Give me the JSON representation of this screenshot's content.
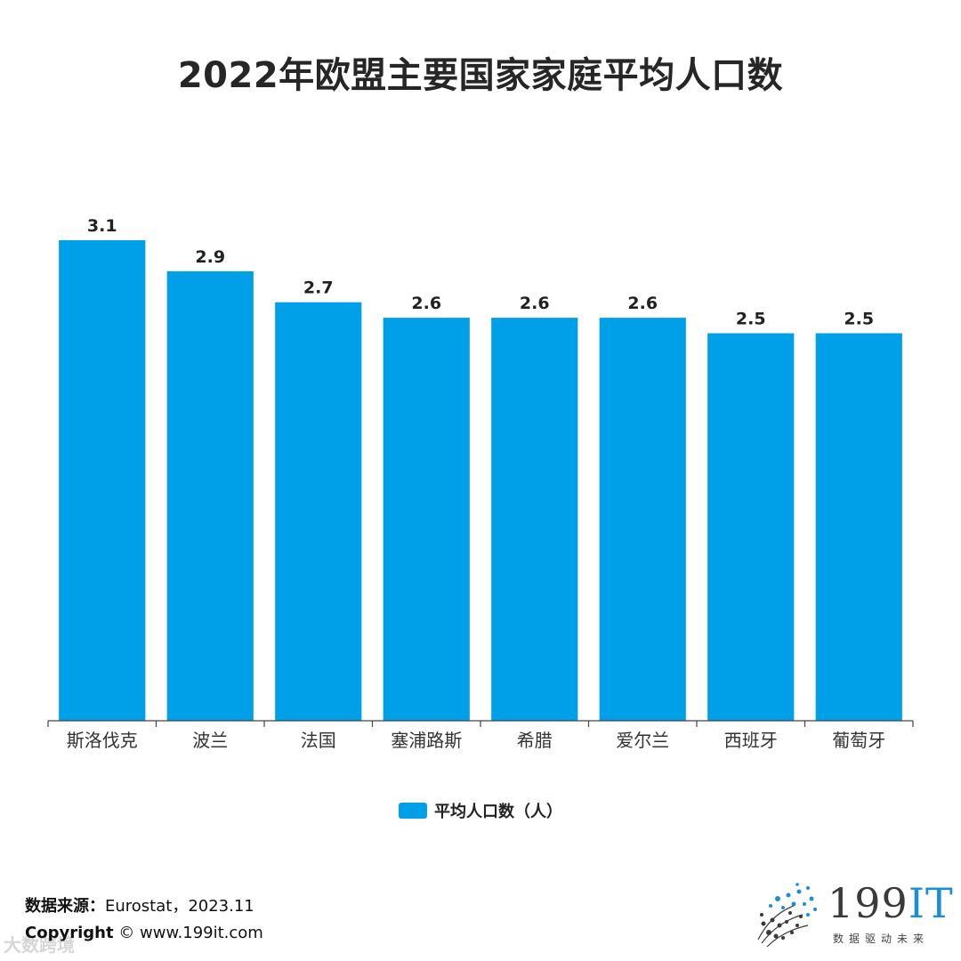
{
  "title": "2022年欧盟主要国家家庭平均人口数",
  "chart_data": {
    "type": "bar",
    "title": "2022年欧盟主要国家家庭平均人口数",
    "categories": [
      "斯洛伐克",
      "波兰",
      "法国",
      "塞浦路斯",
      "希腊",
      "爱尔兰",
      "西班牙",
      "葡萄牙"
    ],
    "series": [
      {
        "name": "平均人口数（人）",
        "values": [
          3.1,
          2.9,
          2.7,
          2.6,
          2.6,
          2.6,
          2.5,
          2.5
        ]
      }
    ],
    "ylim": [
      0,
      3.1
    ],
    "xlabel": "",
    "ylabel": "",
    "grid": false,
    "legend_position": "bottom-center",
    "bar_color": "#00a0e9"
  },
  "legend": {
    "label": "平均人口数（人）",
    "color": "#00a0e9"
  },
  "footer": {
    "source_label": "数据来源：",
    "source_text": "Eurostat，2023.11",
    "copyright_label": "Copyright",
    "copyright_text": "© www.199it.com",
    "watermark": "大数跨境"
  },
  "logo": {
    "name": "199IT",
    "main_text": "199",
    "accent_text": "IT",
    "slogan": "数据驱动未来"
  }
}
